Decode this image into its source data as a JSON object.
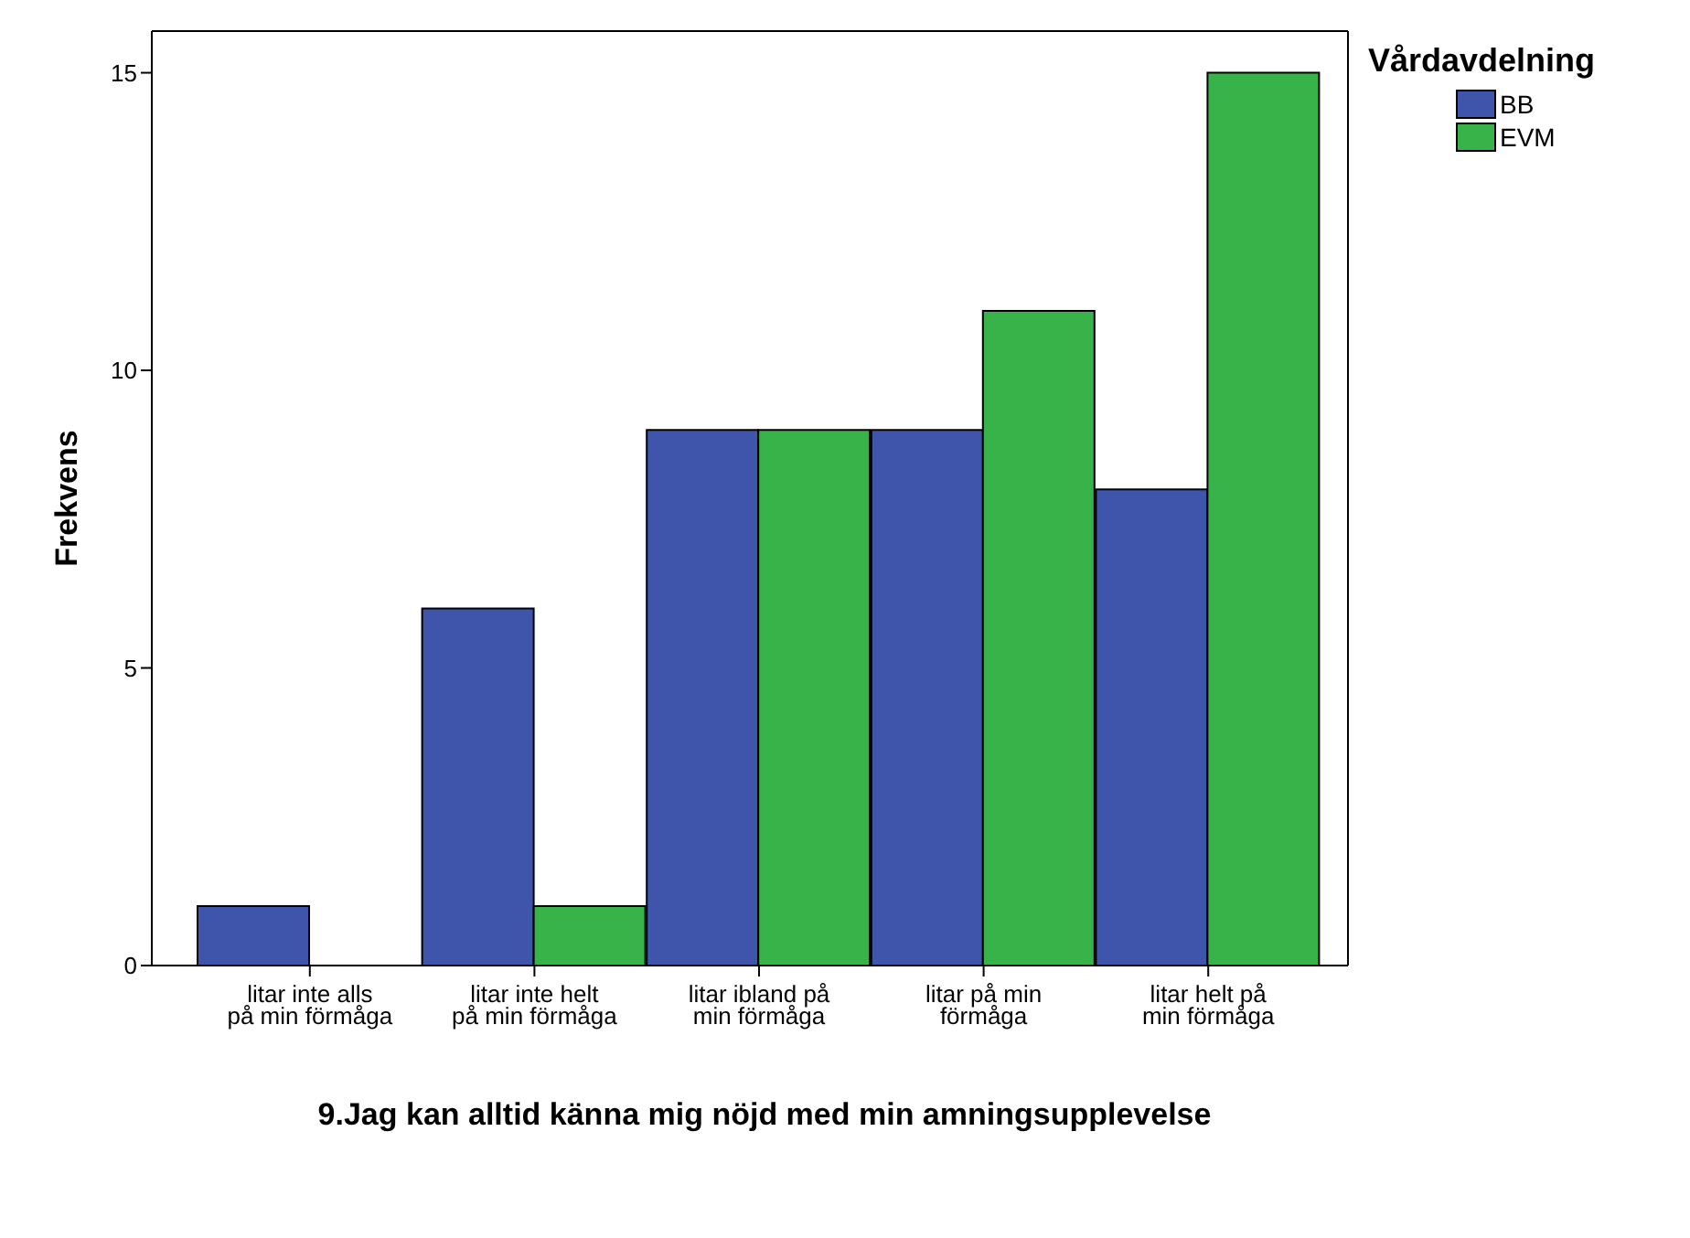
{
  "chart_data": {
    "type": "bar",
    "xlabel": "9.Jag kan alltid känna mig nöjd med min amningsupplevelse",
    "ylabel": "Frekvens",
    "legend_title": "Vårdavdelning",
    "categories": [
      "litar inte alls på min förmåga",
      "litar inte helt på min förmåga",
      "litar ibland på min förmåga",
      "litar på min förmåga",
      "litar helt på min förmåga"
    ],
    "series": [
      {
        "name": "BB",
        "color": "#3e55ab",
        "values": [
          1,
          6,
          9,
          9,
          8
        ]
      },
      {
        "name": "EVM",
        "color": "#37b34a",
        "values": [
          0,
          1,
          9,
          11,
          15
        ]
      }
    ],
    "ylim": [
      0,
      15.7
    ],
    "yticks": [
      0,
      5,
      10,
      15
    ],
    "grid": false,
    "legend": "top right"
  }
}
